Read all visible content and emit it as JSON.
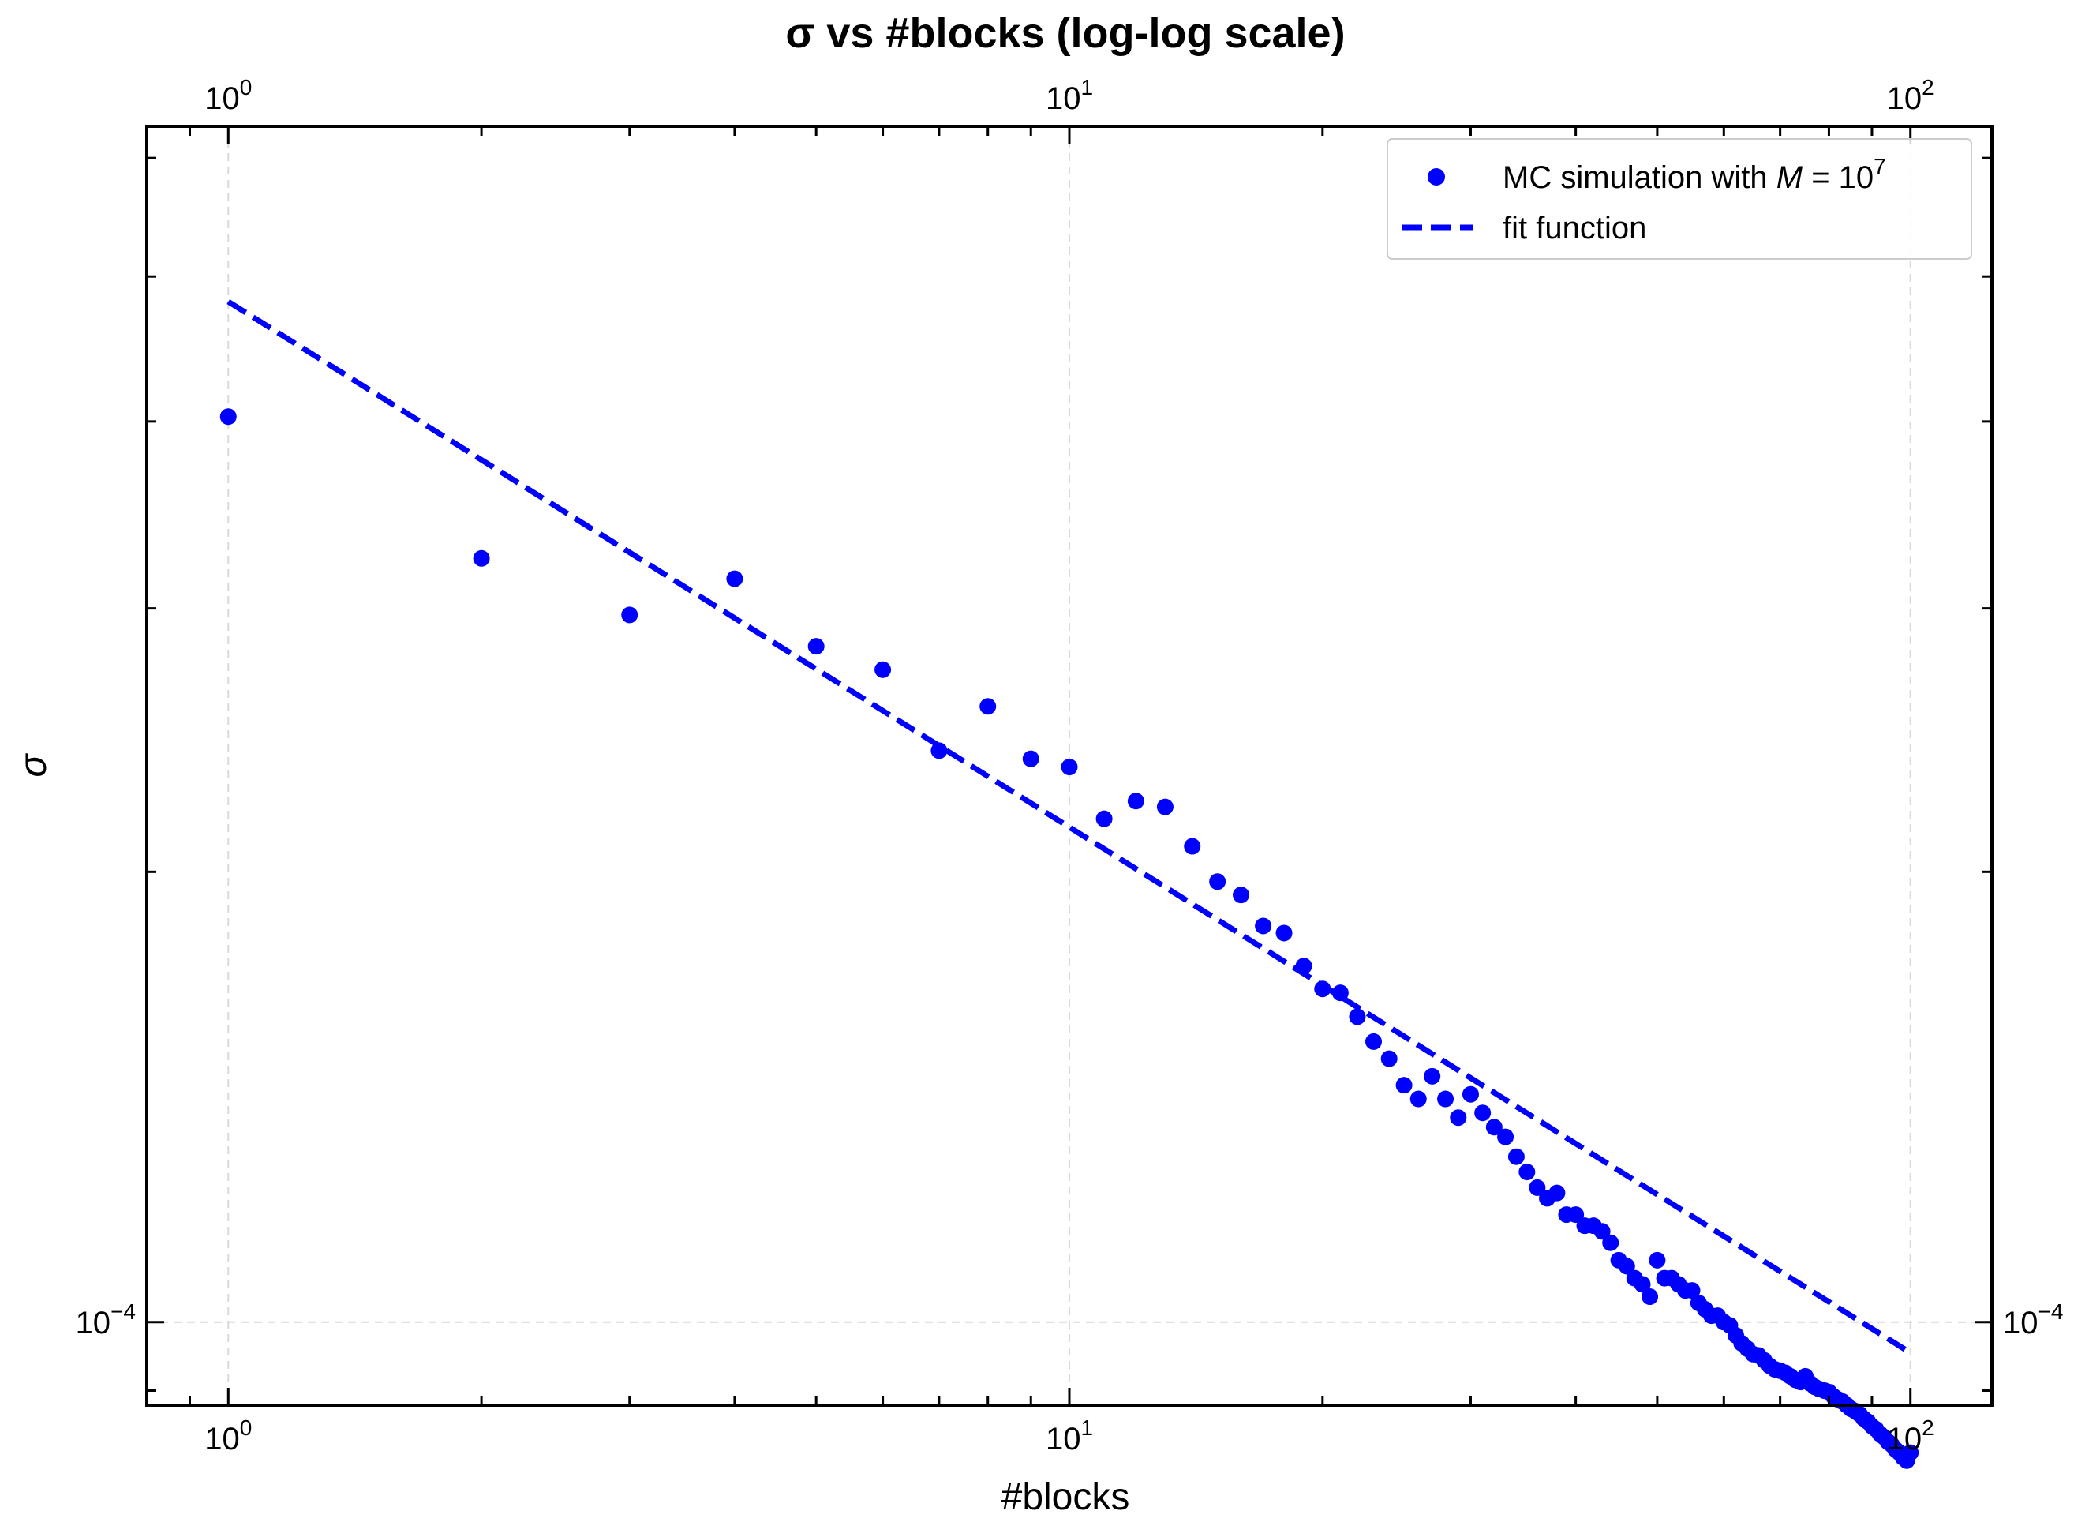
{
  "chart_data": {
    "type": "scatter",
    "title": "σ vs #blocks (log-log scale)",
    "xlabel": "#blocks",
    "ylabel": "σ",
    "xscale": "log",
    "yscale": "log",
    "xlim": [
      0.8,
      125
    ],
    "ylim": [
      8.8e-05,
      0.00063
    ],
    "grid": true,
    "legend_position": "top-right",
    "x_tick_labels": [
      {
        "value": 1,
        "base": "10",
        "exp": "0"
      },
      {
        "value": 10,
        "base": "10",
        "exp": "1"
      },
      {
        "value": 100,
        "base": "10",
        "exp": "2"
      }
    ],
    "y_tick_labels": [
      {
        "value": 0.0001,
        "base": "10",
        "exp": "−4"
      }
    ],
    "legend": {
      "scatter_label_prefix": "MC simulation with ",
      "scatter_label_math": "M",
      "scatter_label_eq": " = 10",
      "scatter_label_exp": "7",
      "line_label": "fit function"
    },
    "colors": {
      "series": "#0000ff",
      "grid": "#d9d9d9",
      "axes": "#000000"
    },
    "series": [
      {
        "name": "MC simulation with M = 10^7",
        "style": "markers",
        "x": [
          1,
          2,
          3,
          4,
          5,
          6,
          7,
          8,
          9,
          10,
          11,
          12,
          13,
          14,
          15,
          16,
          17,
          18,
          19,
          20,
          21,
          22,
          23,
          24,
          25,
          26,
          27,
          28,
          29,
          30,
          31,
          32,
          33,
          34,
          35,
          36,
          37,
          38,
          39,
          40,
          41,
          42,
          43,
          44,
          45,
          46,
          47,
          48,
          49,
          50,
          51,
          52,
          53,
          54,
          55,
          56,
          57,
          58,
          59,
          60,
          61,
          62,
          63,
          64,
          65,
          66,
          67,
          68,
          69,
          70,
          71,
          72,
          73,
          74,
          75,
          76,
          77,
          78,
          79,
          80,
          81,
          82,
          83,
          84,
          85,
          86,
          87,
          88,
          89,
          90,
          91,
          92,
          93,
          94,
          95,
          96,
          97,
          98,
          99,
          100
        ],
        "y": [
          0.000403,
          0.000324,
          0.000297,
          0.000314,
          0.000283,
          0.000273,
          0.000241,
          0.000258,
          0.000238,
          0.000235,
          0.000217,
          0.000223,
          0.000221,
          0.000208,
          0.000197,
          0.000193,
          0.000184,
          0.000182,
          0.000173,
          0.000167,
          0.000166,
          0.00016,
          0.000154,
          0.00015,
          0.000144,
          0.000141,
          0.000146,
          0.000141,
          0.000137,
          0.000142,
          0.000138,
          0.000135,
          0.000133,
          0.000129,
          0.000126,
          0.000123,
          0.000121,
          0.000122,
          0.000118,
          0.000118,
          0.000116,
          0.000116,
          0.000115,
          0.000113,
          0.00011,
          0.000109,
          0.000107,
          0.000106,
          0.000104,
          0.00011,
          0.000107,
          0.000107,
          0.000106,
          0.000105,
          0.000105,
          0.000103,
          0.000102,
          0.000101,
          0.000101,
          0.0001,
          9.95e-05,
          9.8e-05,
          9.68e-05,
          9.6e-05,
          9.52e-05,
          9.5e-05,
          9.43e-05,
          9.35e-05,
          9.3e-05,
          9.28e-05,
          9.25e-05,
          9.2e-05,
          9.15e-05,
          9.12e-05,
          9.2e-05,
          9.1e-05,
          9.05e-05,
          9.02e-05,
          9e-05,
          8.98e-05,
          8.92e-05,
          8.88e-05,
          8.85e-05,
          8.8e-05,
          8.75e-05,
          8.72e-05,
          8.68e-05,
          8.62e-05,
          8.58e-05,
          8.52e-05,
          8.48e-05,
          8.42e-05,
          8.38e-05,
          8.32e-05,
          8.28e-05,
          8.22e-05,
          8.18e-05,
          8.12e-05,
          8.08e-05,
          8.18e-05
        ]
      },
      {
        "name": "fit function",
        "style": "dashed-line",
        "x": [
          1,
          100
        ],
        "y": [
          0.000481,
          9.54e-05
        ]
      }
    ]
  }
}
